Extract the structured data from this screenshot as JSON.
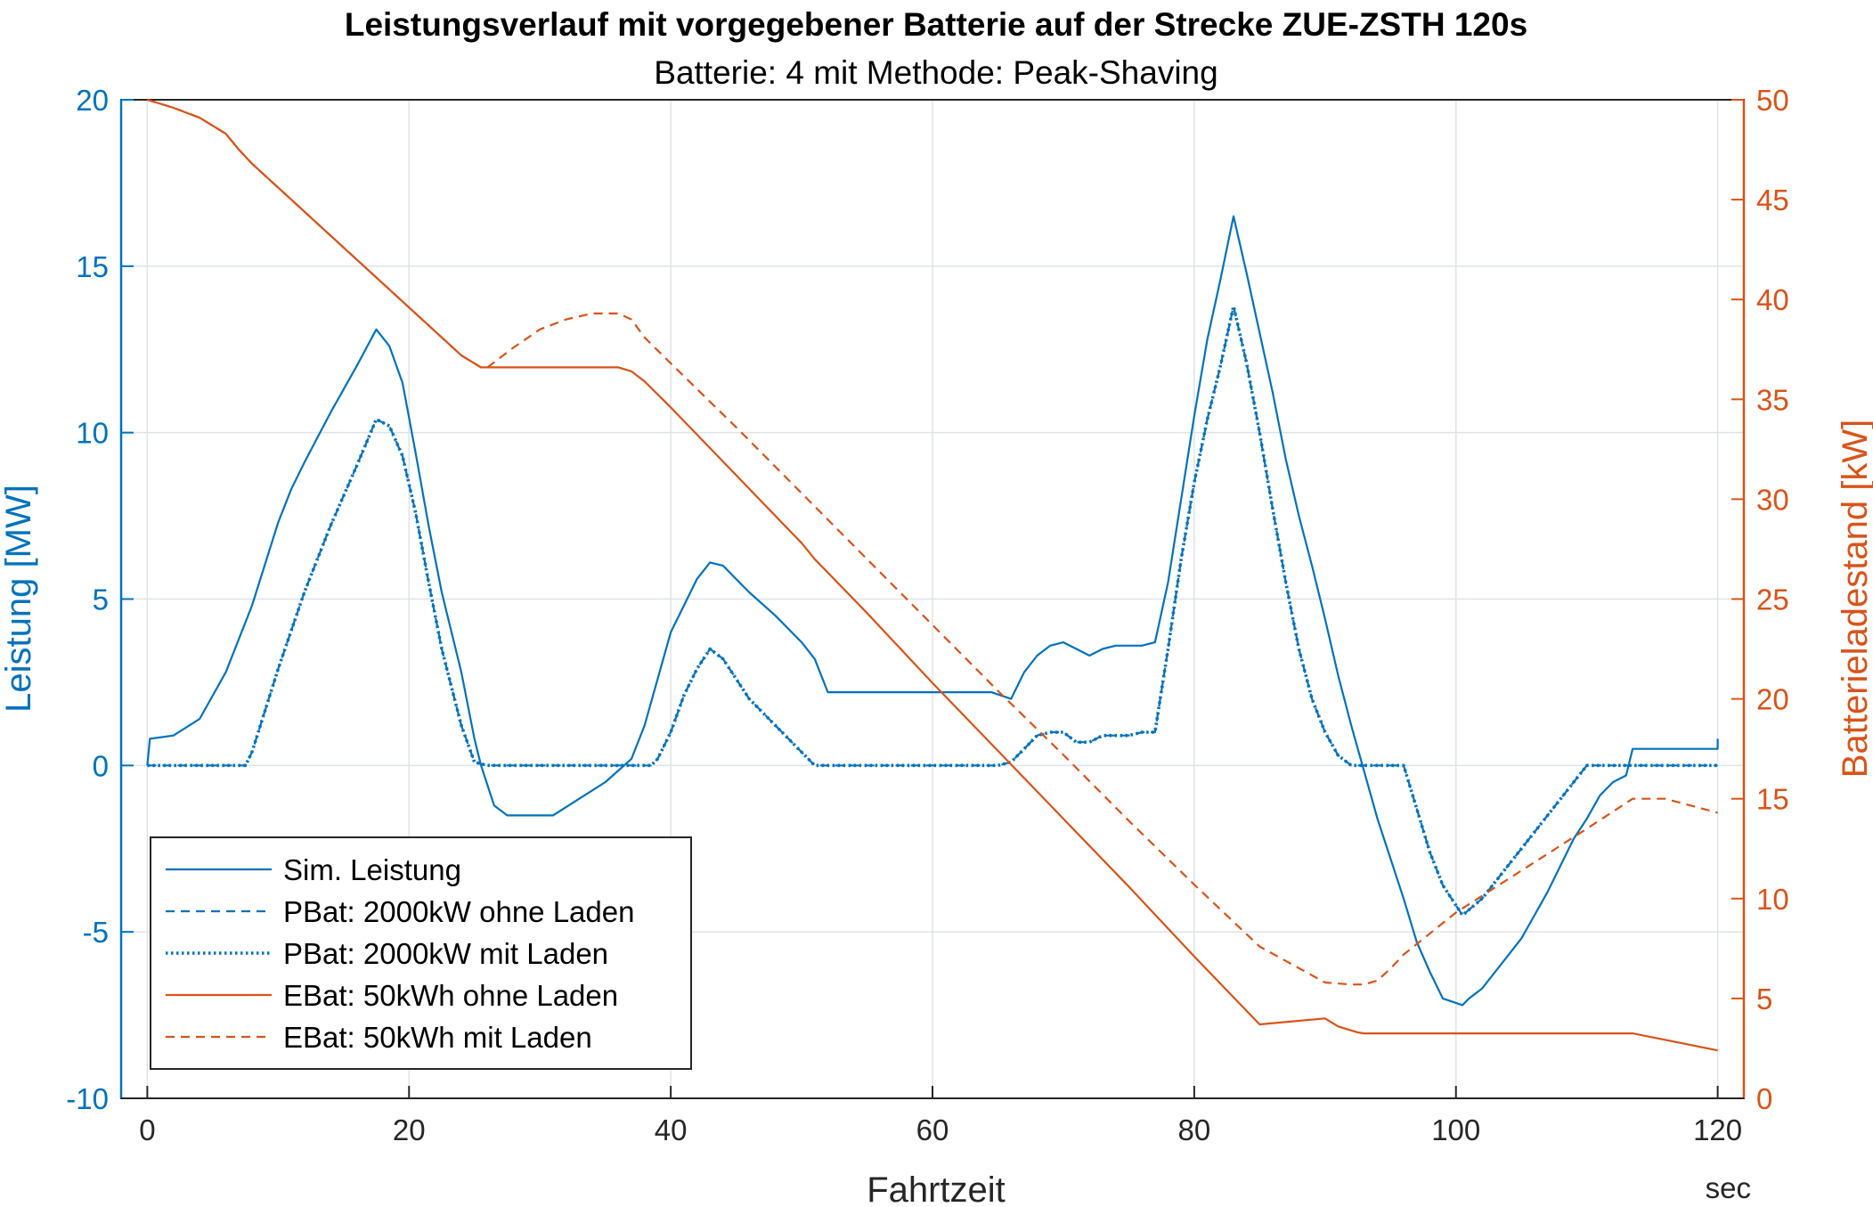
{
  "chart_data": {
    "type": "line",
    "title": "Leistungsverlauf mit vorgegebener Batterie auf der Strecke ZUE-ZSTH 120s",
    "subtitle": "Batterie: 4 mit Methode: Peak-Shaving",
    "xlabel": "Fahrtzeit",
    "xunit": "sec",
    "ylabel_left": "Leistung [MW]",
    "ylabel_right": "Batterieladestand [kW]",
    "xlim": [
      -2,
      122
    ],
    "ylim_left": [
      -10,
      20
    ],
    "ylim_right": [
      0,
      50
    ],
    "xticks": [
      0,
      20,
      40,
      60,
      80,
      100,
      120
    ],
    "yticks_left": [
      -10,
      -5,
      0,
      5,
      10,
      15,
      20
    ],
    "yticks_right": [
      0,
      5,
      10,
      15,
      20,
      25,
      30,
      35,
      40,
      45,
      50
    ],
    "xtick_labels": [
      "0",
      "20",
      "40",
      "60",
      "80",
      "100",
      "120"
    ],
    "ytick_labels_left": [
      "-10",
      "-5",
      "0",
      "5",
      "10",
      "15",
      "20"
    ],
    "ytick_labels_right": [
      "0",
      "5",
      "10",
      "15",
      "20",
      "25",
      "30",
      "35",
      "40",
      "45",
      "50"
    ],
    "grid": true,
    "legend_position": "bottom-left",
    "colors": {
      "blue": "#0072BD",
      "orange": "#D95319",
      "grid": "#dfe3e8"
    },
    "series": [
      {
        "name": "Sim. Leistung",
        "axis": "left",
        "color": "#0072BD",
        "style": "solid",
        "x": [
          0,
          0.2,
          2,
          4,
          6,
          8,
          10,
          11,
          12,
          14,
          16,
          17.5,
          18.5,
          19.5,
          20.5,
          21.5,
          22.5,
          24,
          25,
          25.5,
          26.5,
          27.5,
          28,
          31,
          33,
          35,
          37,
          38,
          39,
          40,
          41,
          42,
          43,
          44,
          45,
          46,
          48,
          50,
          51,
          52,
          55,
          60,
          64.5,
          66,
          67,
          68,
          69,
          70,
          71,
          72,
          73,
          74,
          75,
          76,
          77,
          78,
          79,
          80,
          81,
          82,
          83,
          84,
          85,
          86,
          87,
          88,
          89,
          90,
          91,
          92,
          93,
          94,
          95,
          96,
          97,
          98,
          99,
          100.5,
          101,
          102,
          103,
          104,
          105,
          106,
          107,
          108,
          109,
          110,
          111,
          112,
          113,
          113.5,
          120,
          120
        ],
        "y": [
          0,
          0.8,
          0.9,
          1.4,
          2.8,
          4.8,
          7.3,
          8.3,
          9.1,
          10.6,
          12.0,
          13.1,
          12.6,
          11.5,
          9.4,
          7.2,
          5.2,
          2.8,
          0.8,
          0,
          -1.2,
          -1.5,
          -1.5,
          -1.5,
          -1.0,
          -0.5,
          0.2,
          1.2,
          2.6,
          4.0,
          4.8,
          5.6,
          6.1,
          6.0,
          5.6,
          5.2,
          4.5,
          3.7,
          3.2,
          2.2,
          2.2,
          2.2,
          2.2,
          2.0,
          2.8,
          3.3,
          3.6,
          3.7,
          3.5,
          3.3,
          3.5,
          3.6,
          3.6,
          3.6,
          3.7,
          5.5,
          8.0,
          10.5,
          12.8,
          14.6,
          16.5,
          14.8,
          13.0,
          11.2,
          9.2,
          7.5,
          6.0,
          4.4,
          2.7,
          1.2,
          -0.2,
          -1.6,
          -2.8,
          -4.0,
          -5.3,
          -6.2,
          -7.0,
          -7.2,
          -7.0,
          -6.7,
          -6.2,
          -5.7,
          -5.2,
          -4.5,
          -3.8,
          -3.0,
          -2.2,
          -1.6,
          -0.9,
          -0.5,
          -0.3,
          0.5,
          0.5,
          0.8
        ]
      },
      {
        "name": "PBat: 2000kW ohne Laden",
        "axis": "left",
        "color": "#0072BD",
        "style": "dashed",
        "x": [
          0,
          7.5,
          8,
          10,
          12,
          14,
          16,
          17.5,
          18.5,
          19.5,
          20.5,
          21.5,
          22.5,
          24,
          25,
          26,
          38.5,
          39,
          40,
          41,
          42,
          43,
          44,
          45,
          46,
          48,
          50,
          51,
          65,
          66,
          67,
          68,
          69,
          70,
          71,
          72,
          73,
          74,
          75,
          76,
          77,
          78,
          79,
          80,
          81,
          82,
          83,
          84,
          85,
          86,
          87,
          88,
          89,
          90,
          91,
          92,
          96,
          97,
          98,
          99,
          100.5,
          102,
          104,
          106,
          108,
          110,
          120
        ],
        "y": [
          0,
          0,
          0.4,
          2.9,
          5.2,
          7.2,
          9.0,
          10.4,
          10.2,
          9.3,
          7.6,
          5.5,
          3.5,
          1.2,
          0.1,
          0,
          0,
          0.2,
          1.0,
          2.1,
          2.9,
          3.5,
          3.2,
          2.6,
          2.0,
          1.2,
          0.4,
          0,
          0,
          0.1,
          0.5,
          0.9,
          1.0,
          1.0,
          0.7,
          0.7,
          0.9,
          0.9,
          0.9,
          1.0,
          1.0,
          3.5,
          6.2,
          8.5,
          10.4,
          12.0,
          13.8,
          12.1,
          10.0,
          7.7,
          5.5,
          3.5,
          2.0,
          1.0,
          0.3,
          0,
          0,
          -1.3,
          -2.6,
          -3.6,
          -4.5,
          -4.0,
          -3.0,
          -2.0,
          -1.0,
          0,
          0
        ]
      },
      {
        "name": "PBat: 2000kW mit Laden",
        "axis": "left",
        "color": "#0072BD",
        "style": "dotted",
        "x": [
          0,
          7.5,
          8,
          10,
          12,
          14,
          16,
          17.5,
          18.5,
          19.5,
          20.5,
          21.5,
          22.5,
          24,
          25,
          26,
          38.5,
          39,
          40,
          41,
          42,
          43,
          44,
          45,
          46,
          48,
          50,
          51,
          65,
          66,
          67,
          68,
          69,
          70,
          71,
          72,
          73,
          74,
          75,
          76,
          77,
          78,
          79,
          80,
          81,
          82,
          83,
          84,
          85,
          86,
          87,
          88,
          89,
          90,
          91,
          92,
          96,
          97,
          98,
          99,
          100.5,
          102,
          104,
          106,
          108,
          110,
          120
        ],
        "y": [
          0,
          0,
          0.4,
          2.9,
          5.2,
          7.2,
          9.0,
          10.4,
          10.2,
          9.3,
          7.6,
          5.5,
          3.5,
          1.2,
          0.1,
          0,
          0,
          0.2,
          1.0,
          2.1,
          2.9,
          3.5,
          3.2,
          2.6,
          2.0,
          1.2,
          0.4,
          0,
          0,
          0.1,
          0.5,
          0.9,
          1.0,
          1.0,
          0.7,
          0.7,
          0.9,
          0.9,
          0.9,
          1.0,
          1.0,
          3.5,
          6.2,
          8.5,
          10.4,
          12.0,
          13.8,
          12.1,
          10.0,
          7.7,
          5.5,
          3.5,
          2.0,
          1.0,
          0.3,
          0,
          0,
          -1.3,
          -2.6,
          -3.6,
          -4.5,
          -4.0,
          -3.0,
          -2.0,
          -1.0,
          0,
          0
        ]
      },
      {
        "name": "EBat: 50kWh ohne Laden",
        "axis": "right",
        "color": "#D95319",
        "style": "solid",
        "x": [
          0,
          2,
          4,
          6,
          7,
          8,
          10,
          15,
          20,
          24,
          25,
          25.5,
          26,
          35,
          36,
          37,
          38,
          40,
          45,
          50,
          51,
          55,
          60,
          65,
          70,
          75,
          80,
          85,
          90,
          91,
          92,
          92.5,
          93,
          100,
          105,
          113.5,
          120
        ],
        "y": [
          50,
          49.6,
          49.1,
          48.3,
          47.5,
          46.8,
          45.6,
          42.6,
          39.6,
          37.2,
          36.8,
          36.6,
          36.6,
          36.6,
          36.6,
          36.4,
          35.9,
          34.6,
          31.2,
          27.8,
          27.0,
          24.3,
          20.8,
          17.4,
          14.0,
          10.6,
          7.1,
          3.7,
          4.0,
          3.6,
          3.4,
          3.3,
          3.25,
          3.25,
          3.25,
          3.25,
          2.4
        ]
      },
      {
        "name": "EBat: 50kWh mit Laden",
        "axis": "right",
        "color": "#D95319",
        "style": "dashed",
        "x": [
          0,
          2,
          4,
          6,
          7,
          8,
          10,
          15,
          20,
          24,
          25,
          25.5,
          26,
          28,
          30,
          32,
          34,
          36,
          37,
          38,
          40,
          45,
          50,
          55,
          60,
          65,
          70,
          75,
          80,
          85,
          90,
          92,
          93,
          94,
          95,
          96,
          100,
          105,
          110,
          113.5,
          116,
          120
        ],
        "y": [
          50,
          49.6,
          49.1,
          48.3,
          47.5,
          46.8,
          45.6,
          42.6,
          39.6,
          37.2,
          36.8,
          36.6,
          36.6,
          37.6,
          38.5,
          39.0,
          39.3,
          39.3,
          39.0,
          38.1,
          36.8,
          33.6,
          30.3,
          27.0,
          23.7,
          20.4,
          17.2,
          13.9,
          10.7,
          7.6,
          5.8,
          5.7,
          5.7,
          5.9,
          6.5,
          7.2,
          9.3,
          11.4,
          13.5,
          15.0,
          15.0,
          14.3
        ]
      }
    ]
  }
}
